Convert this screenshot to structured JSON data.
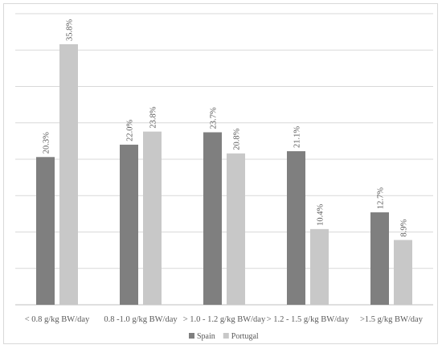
{
  "chart_data": {
    "type": "bar",
    "title": "",
    "xlabel": "",
    "ylabel": "",
    "ylim": [
      0,
      40
    ],
    "y_gridlines": [
      0,
      5,
      10,
      15,
      20,
      25,
      30,
      35,
      40
    ],
    "grid": true,
    "y_axis_labels_shown": false,
    "legend_position": "bottom",
    "value_suffix": "%",
    "categories": [
      "< 0.8 g/kg BW/day",
      "0.8 -1.0 g/kg BW/day",
      "> 1.0 - 1.2 g/kg BW/day",
      "> 1.2 - 1.5 g/kg BW/day",
      ">1.5 g/kg BW/day"
    ],
    "series": [
      {
        "name": "Spain",
        "color": "#7f7f7f",
        "values": [
          20.3,
          22.0,
          23.7,
          21.1,
          12.7
        ],
        "labels": [
          "20.3%",
          "22.0%",
          "23.7%",
          "21.1%",
          "12.7%"
        ]
      },
      {
        "name": "Portugal",
        "color": "#c8c8c8",
        "values": [
          35.8,
          23.8,
          20.8,
          10.4,
          8.9
        ],
        "labels": [
          "35.8%",
          "23.8%",
          "20.8%",
          "10.4%",
          "8.9%"
        ]
      }
    ]
  }
}
